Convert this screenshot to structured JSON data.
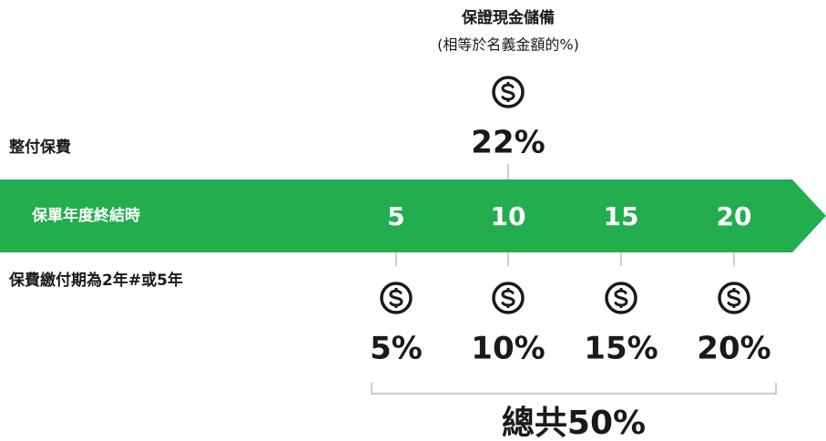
{
  "header": {
    "title": "保證現金儲備",
    "subtitle": "(相等於名義金額的%)"
  },
  "single_premium": {
    "label": "整付保費",
    "value": "22%"
  },
  "timeline": {
    "label": "保單年度終結時",
    "years": [
      "5",
      "10",
      "15",
      "20"
    ]
  },
  "limited_pay": {
    "label": "保費繳付期為2年#或5年",
    "values": [
      "5%",
      "10%",
      "15%",
      "20%"
    ]
  },
  "total": "總共50%"
}
